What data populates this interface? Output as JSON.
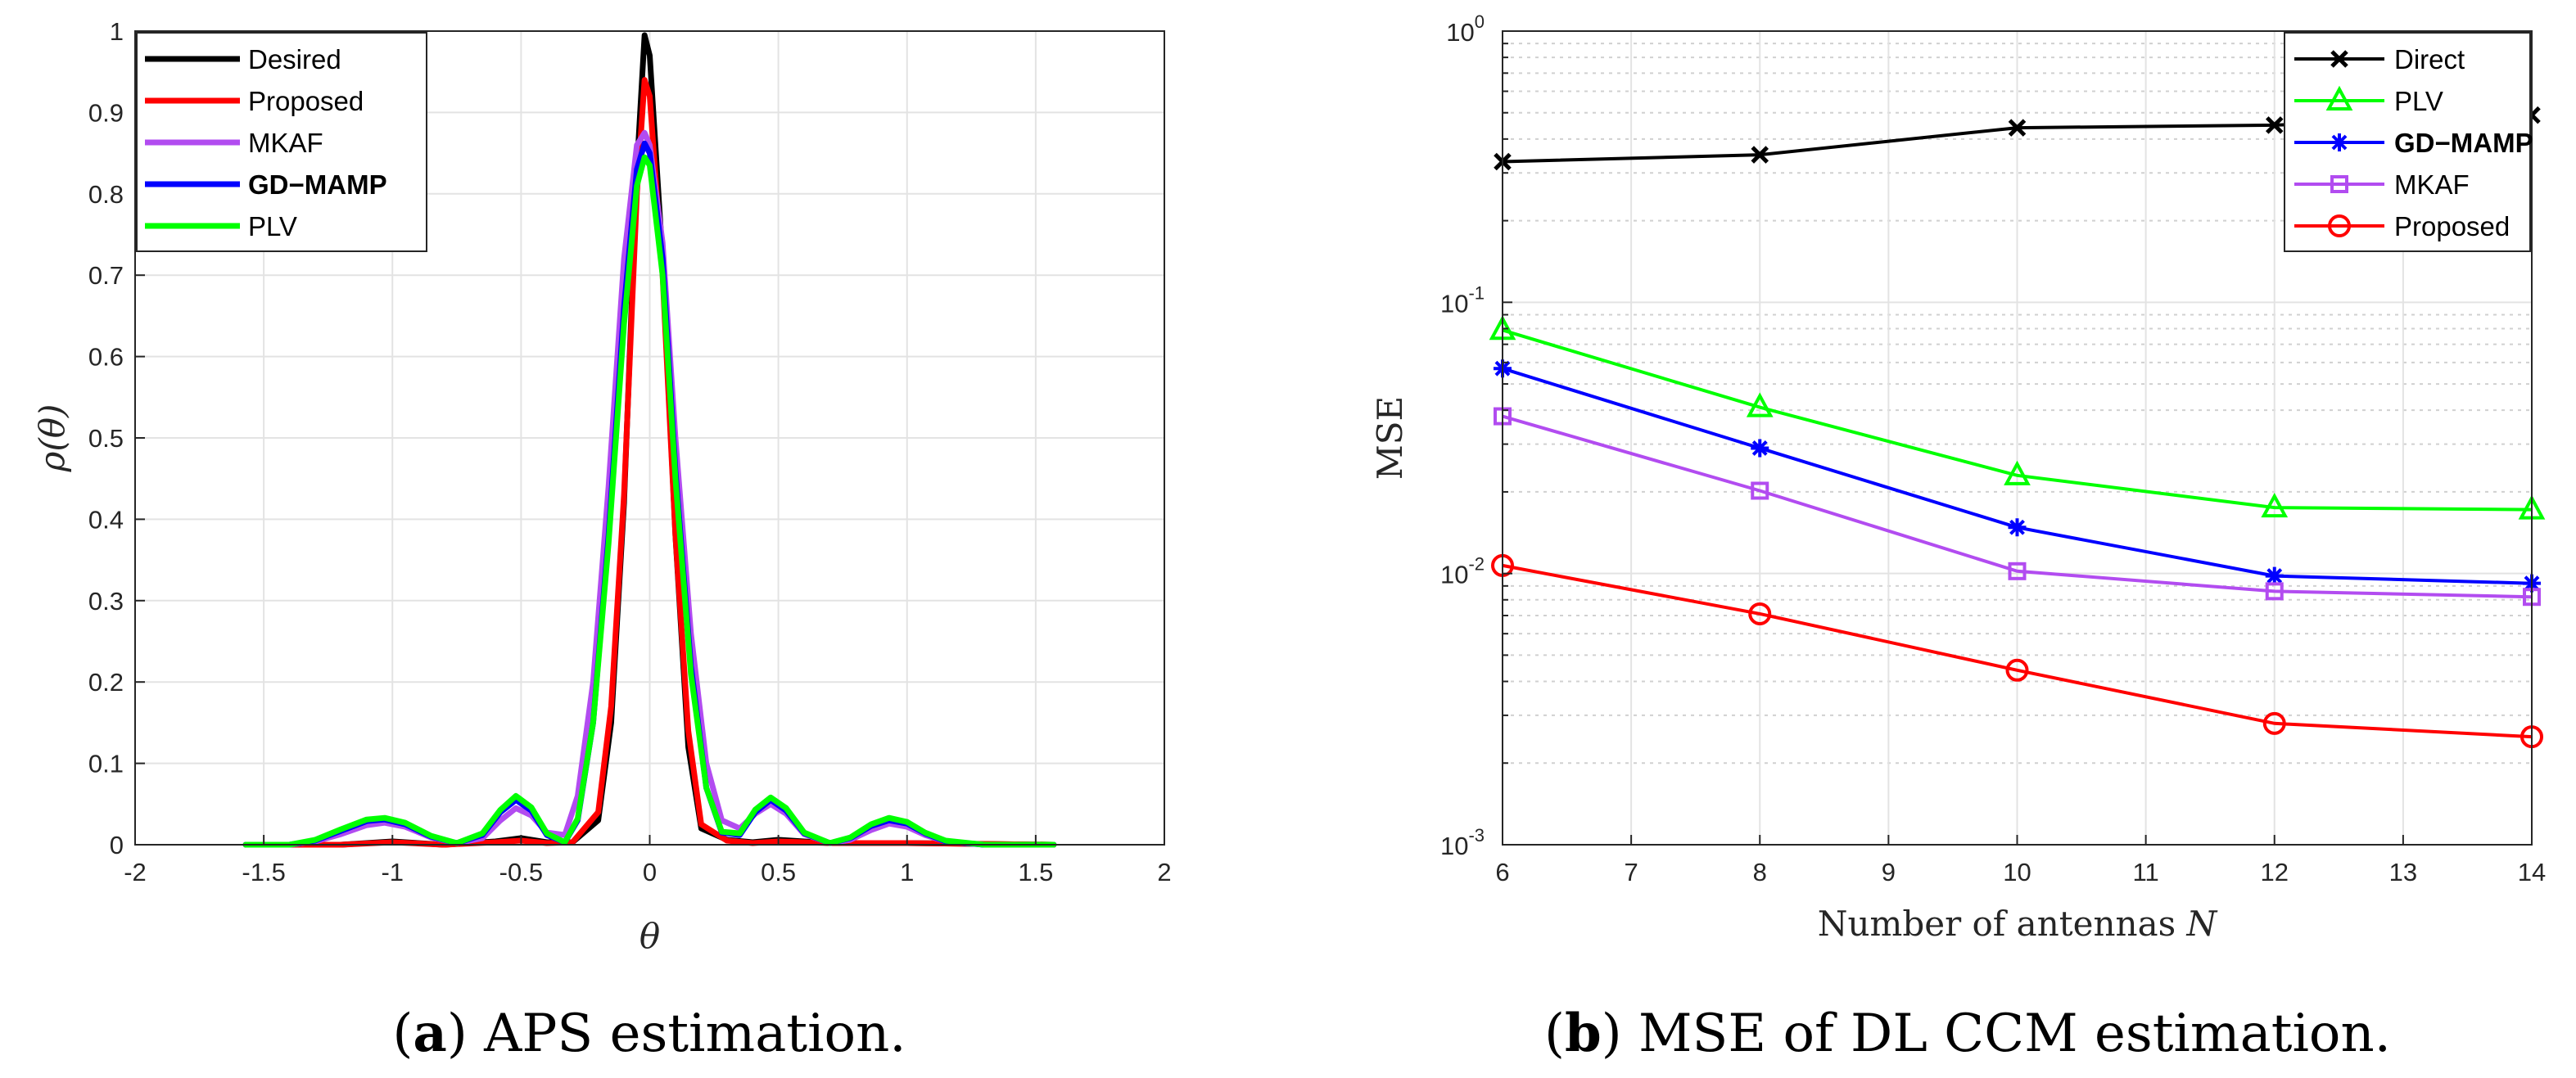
{
  "chart_data": [
    {
      "type": "line",
      "caption": {
        "label": "a",
        "text": " APS estimation."
      },
      "xlabel": "θ",
      "ylabel": "ρ(θ)",
      "xlim": [
        -2,
        2
      ],
      "ylim": [
        0,
        1
      ],
      "xticks": [
        -2,
        -1.5,
        -1,
        -0.5,
        0,
        0.5,
        1,
        1.5,
        2
      ],
      "xticklabels": [
        "-2",
        "-1.5",
        "-1",
        "-0.5",
        "0",
        "0.5",
        "1",
        "1.5",
        "2"
      ],
      "yticks": [
        0,
        0.1,
        0.2,
        0.3,
        0.4,
        0.5,
        0.6,
        0.7,
        0.8,
        0.9,
        1
      ],
      "yticklabels": [
        "0",
        "0.1",
        "0.2",
        "0.3",
        "0.4",
        "0.5",
        "0.6",
        "0.7",
        "0.8",
        "0.9",
        "1"
      ],
      "grid": true,
      "legend_position": "top-left",
      "series": [
        {
          "name": "Desired",
          "color": "#000000",
          "bold": false,
          "x": [
            -1.57,
            -1.2,
            -1.0,
            -0.8,
            -0.6,
            -0.5,
            -0.4,
            -0.3,
            -0.2,
            -0.15,
            -0.1,
            -0.05,
            -0.02,
            0.0,
            0.05,
            0.1,
            0.15,
            0.2,
            0.3,
            0.4,
            0.5,
            0.7,
            1.0,
            1.57
          ],
          "y": [
            0,
            0,
            0.004,
            0,
            0.004,
            0.008,
            0.003,
            0.003,
            0.03,
            0.15,
            0.42,
            0.83,
            0.995,
            0.97,
            0.72,
            0.38,
            0.12,
            0.02,
            0.006,
            0.003,
            0.006,
            0.002,
            0.002,
            0
          ]
        },
        {
          "name": "Proposed",
          "color": "#ff0000",
          "bold": false,
          "x": [
            -1.57,
            -1.2,
            -1.0,
            -0.8,
            -0.6,
            -0.5,
            -0.4,
            -0.3,
            -0.2,
            -0.15,
            -0.1,
            -0.05,
            -0.02,
            0.0,
            0.05,
            0.1,
            0.15,
            0.2,
            0.3,
            0.4,
            0.5,
            0.7,
            1.0,
            1.57
          ],
          "y": [
            0,
            0,
            0.003,
            0,
            0.003,
            0.005,
            0.002,
            0.003,
            0.04,
            0.17,
            0.43,
            0.8,
            0.94,
            0.92,
            0.7,
            0.38,
            0.14,
            0.025,
            0.005,
            0.002,
            0.004,
            0.002,
            0.002,
            0
          ]
        },
        {
          "name": "MKAF",
          "color": "#b24cf0",
          "bold": false,
          "x": [
            -1.57,
            -1.4,
            -1.3,
            -1.2,
            -1.1,
            -1.03,
            -0.95,
            -0.85,
            -0.75,
            -0.65,
            -0.58,
            -0.52,
            -0.46,
            -0.4,
            -0.33,
            -0.28,
            -0.22,
            -0.16,
            -0.1,
            -0.05,
            -0.02,
            0.0,
            0.05,
            0.1,
            0.16,
            0.22,
            0.28,
            0.35,
            0.41,
            0.47,
            0.53,
            0.6,
            0.7,
            0.78,
            0.86,
            0.93,
            1.0,
            1.07,
            1.15,
            1.3,
            1.57
          ],
          "y": [
            0,
            0,
            0.004,
            0.013,
            0.024,
            0.027,
            0.022,
            0.009,
            0.002,
            0.008,
            0.03,
            0.045,
            0.036,
            0.015,
            0.012,
            0.06,
            0.2,
            0.44,
            0.72,
            0.86,
            0.875,
            0.86,
            0.74,
            0.5,
            0.26,
            0.1,
            0.03,
            0.02,
            0.038,
            0.05,
            0.038,
            0.013,
            0.002,
            0.006,
            0.018,
            0.026,
            0.022,
            0.012,
            0.004,
            0,
            0
          ]
        },
        {
          "name": "GD−MAMP",
          "color": "#0000ff",
          "bold": true,
          "x": [
            -1.57,
            -1.4,
            -1.3,
            -1.2,
            -1.1,
            -1.03,
            -0.95,
            -0.85,
            -0.75,
            -0.65,
            -0.58,
            -0.52,
            -0.46,
            -0.4,
            -0.33,
            -0.28,
            -0.22,
            -0.16,
            -0.1,
            -0.05,
            -0.02,
            0.0,
            0.05,
            0.1,
            0.16,
            0.22,
            0.28,
            0.35,
            0.41,
            0.47,
            0.53,
            0.6,
            0.7,
            0.78,
            0.86,
            0.93,
            1.0,
            1.07,
            1.15,
            1.3,
            1.57
          ],
          "y": [
            0,
            0,
            0.005,
            0.017,
            0.029,
            0.031,
            0.025,
            0.01,
            0.002,
            0.012,
            0.04,
            0.055,
            0.042,
            0.012,
            0.003,
            0.03,
            0.15,
            0.38,
            0.66,
            0.83,
            0.862,
            0.85,
            0.72,
            0.46,
            0.22,
            0.07,
            0.015,
            0.012,
            0.04,
            0.055,
            0.042,
            0.014,
            0.002,
            0.008,
            0.023,
            0.03,
            0.026,
            0.014,
            0.004,
            0,
            0
          ]
        },
        {
          "name": "PLV",
          "color": "#00ff00",
          "bold": false,
          "x": [
            -1.57,
            -1.4,
            -1.3,
            -1.2,
            -1.1,
            -1.03,
            -0.95,
            -0.85,
            -0.75,
            -0.65,
            -0.58,
            -0.52,
            -0.46,
            -0.4,
            -0.33,
            -0.28,
            -0.22,
            -0.16,
            -0.1,
            -0.05,
            -0.02,
            0.0,
            0.05,
            0.1,
            0.16,
            0.22,
            0.28,
            0.35,
            0.41,
            0.47,
            0.53,
            0.6,
            0.7,
            0.78,
            0.86,
            0.93,
            1.0,
            1.07,
            1.15,
            1.3,
            1.57
          ],
          "y": [
            0,
            0,
            0.006,
            0.019,
            0.031,
            0.033,
            0.027,
            0.011,
            0.002,
            0.014,
            0.043,
            0.06,
            0.046,
            0.014,
            0.003,
            0.032,
            0.15,
            0.37,
            0.64,
            0.81,
            0.845,
            0.835,
            0.7,
            0.45,
            0.21,
            0.07,
            0.016,
            0.014,
            0.043,
            0.058,
            0.045,
            0.015,
            0.002,
            0.009,
            0.025,
            0.033,
            0.028,
            0.015,
            0.005,
            0,
            0
          ]
        }
      ]
    },
    {
      "type": "line",
      "caption": {
        "label": "b",
        "text": " MSE of DL CCM estimation."
      },
      "xlabel": "Number of antennas N",
      "ylabel": "MSE",
      "yscale": "log",
      "xlim": [
        6,
        14
      ],
      "ylim": [
        0.001,
        1
      ],
      "xticks": [
        6,
        7,
        8,
        9,
        10,
        11,
        12,
        13,
        14
      ],
      "xticklabels": [
        "6",
        "7",
        "8",
        "9",
        "10",
        "11",
        "12",
        "13",
        "14"
      ],
      "yticks": [
        0.001,
        0.01,
        0.1,
        1
      ],
      "yticklabels": [
        {
          "base": "10",
          "exp": "-3"
        },
        {
          "base": "10",
          "exp": "-2"
        },
        {
          "base": "10",
          "exp": "-1"
        },
        {
          "base": "10",
          "exp": "0"
        }
      ],
      "grid": true,
      "minor_grid": true,
      "legend_position": "top-right",
      "x": [
        6,
        8,
        10,
        12,
        14
      ],
      "series": [
        {
          "name": "Direct",
          "color": "#000000",
          "marker": "x",
          "bold": false,
          "values": [
            0.33,
            0.35,
            0.44,
            0.45,
            0.49
          ]
        },
        {
          "name": "PLV",
          "color": "#00ff00",
          "marker": "triangle",
          "bold": false,
          "values": [
            0.079,
            0.041,
            0.023,
            0.0175,
            0.0172
          ]
        },
        {
          "name": "GD−MAMP",
          "color": "#0000ff",
          "marker": "asterisk",
          "bold": true,
          "values": [
            0.057,
            0.029,
            0.0148,
            0.0098,
            0.0092
          ]
        },
        {
          "name": "MKAF",
          "color": "#b24cf0",
          "marker": "square",
          "bold": false,
          "values": [
            0.038,
            0.0202,
            0.0102,
            0.0086,
            0.0082
          ]
        },
        {
          "name": "Proposed",
          "color": "#ff0000",
          "marker": "circle",
          "bold": false,
          "values": [
            0.0107,
            0.0071,
            0.0044,
            0.0028,
            0.0025
          ]
        }
      ]
    }
  ]
}
